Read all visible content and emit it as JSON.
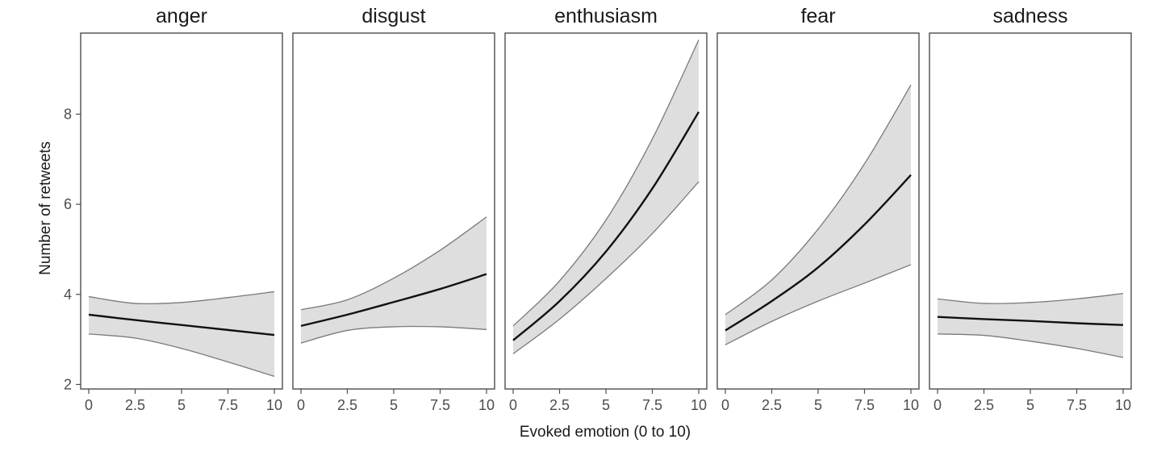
{
  "chart_data": {
    "type": "line",
    "xlabel": "Evoked emotion (0 to 10)",
    "ylabel": "Number of retweets",
    "xlim": [
      -0.5,
      10.5
    ],
    "ylim": [
      1.9,
      9.8
    ],
    "x_ticks": [
      0,
      2.5,
      5,
      7.5,
      10
    ],
    "x_tick_labels": [
      "0",
      "2.5",
      "5",
      "7.5",
      "10"
    ],
    "y_ticks": [
      2,
      4,
      6,
      8
    ],
    "y_tick_labels": [
      "2",
      "4",
      "6",
      "8"
    ],
    "grid": false,
    "legend": "none",
    "x": [
      0,
      2.5,
      5,
      7.5,
      10
    ],
    "panels": [
      {
        "title": "anger",
        "fit": [
          3.55,
          3.43,
          3.32,
          3.21,
          3.1
        ],
        "lower": [
          3.12,
          3.03,
          2.8,
          2.5,
          2.18
        ],
        "upper": [
          3.95,
          3.8,
          3.82,
          3.93,
          4.06
        ]
      },
      {
        "title": "disgust",
        "fit": [
          3.3,
          3.55,
          3.83,
          4.12,
          4.45
        ],
        "lower": [
          2.92,
          3.2,
          3.28,
          3.28,
          3.22
        ],
        "upper": [
          3.66,
          3.88,
          4.36,
          4.98,
          5.72
        ]
      },
      {
        "title": "enthusiasm",
        "fit": [
          2.98,
          3.85,
          4.95,
          6.35,
          8.05
        ],
        "lower": [
          2.68,
          3.45,
          4.35,
          5.35,
          6.5
        ],
        "upper": [
          3.3,
          4.3,
          5.65,
          7.45,
          9.65
        ]
      },
      {
        "title": "fear",
        "fit": [
          3.2,
          3.85,
          4.6,
          5.55,
          6.65
        ],
        "lower": [
          2.88,
          3.4,
          3.85,
          4.25,
          4.66
        ],
        "upper": [
          3.55,
          4.32,
          5.45,
          6.9,
          8.65
        ]
      },
      {
        "title": "sadness",
        "fit": [
          3.5,
          3.45,
          3.41,
          3.36,
          3.32
        ],
        "lower": [
          3.12,
          3.09,
          2.96,
          2.8,
          2.6
        ],
        "upper": [
          3.9,
          3.8,
          3.82,
          3.9,
          4.02
        ]
      }
    ]
  }
}
